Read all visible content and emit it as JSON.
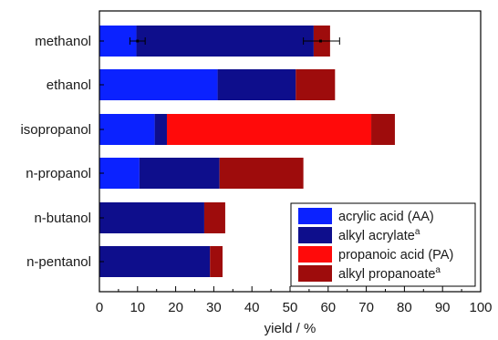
{
  "chart_data": {
    "type": "bar",
    "orientation": "horizontal",
    "stacked": true,
    "categories": [
      "methanol",
      "ethanol",
      "isopropanol",
      "n-propanol",
      "n-butanol",
      "n-pentanol"
    ],
    "series": [
      {
        "name": "acrylic acid (AA)",
        "color": "#0b22ff",
        "values": [
          9.7,
          31,
          14.5,
          10.5,
          0,
          0
        ]
      },
      {
        "name": "alkyl acrylate",
        "name_superscript": "a",
        "color": "#0e0e8c",
        "values": [
          46.5,
          20.5,
          3.2,
          21,
          27.5,
          29
        ]
      },
      {
        "name": "propanoic acid (PA)",
        "color": "#ff0a0a",
        "values": [
          0,
          0,
          53.6,
          0,
          0,
          0
        ]
      },
      {
        "name": "alkyl propanoate",
        "name_superscript": "a",
        "color": "#9e0c0c",
        "values": [
          4.3,
          10.3,
          6.2,
          22,
          5.5,
          3.3
        ]
      }
    ],
    "error_bars": [
      {
        "category": "methanol",
        "center": 10,
        "minus": 2,
        "plus": 2
      },
      {
        "category": "methanol",
        "center": 58,
        "minus": 4.5,
        "plus": 5
      }
    ],
    "xlabel": "yield / %",
    "ylabel": "",
    "xlim": [
      0,
      100
    ],
    "xticks": [
      "0",
      "10",
      "20",
      "30",
      "40",
      "50",
      "60",
      "70",
      "80",
      "90",
      "100"
    ],
    "grid": false,
    "legend_position": "bottom-right"
  }
}
